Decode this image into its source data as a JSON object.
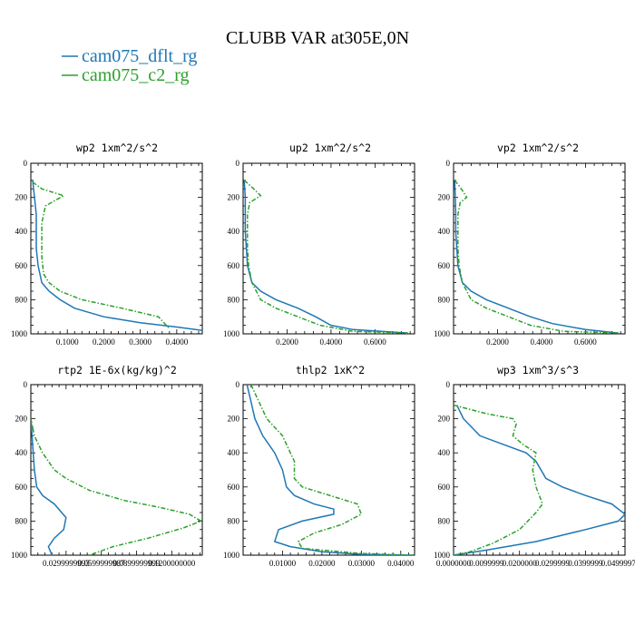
{
  "title": "CLUBB VAR at305E,0N",
  "legend": [
    {
      "label": "cam075_dflt_rg",
      "color": "#1f77b4"
    },
    {
      "label": "cam075_c2_rg",
      "color": "#2ca02c"
    }
  ],
  "chart_data": [
    {
      "type": "line",
      "title": "wp2  1xm^2/s^2",
      "ylim": [
        0,
        1000
      ],
      "yticks": [
        0,
        200,
        400,
        600,
        800,
        1000
      ],
      "xlim": [
        0,
        0.47
      ],
      "xticks": [
        0.1,
        0.2,
        0.3,
        0.4
      ],
      "xtick_labels": [
        "0.1000",
        "0.2000",
        "0.3000",
        "0.4000"
      ],
      "series": [
        {
          "name": "cam075_dflt_rg",
          "x": [
            0.005,
            0.01,
            0.015,
            0.015,
            0.015,
            0.02,
            0.03,
            0.05,
            0.08,
            0.12,
            0.2,
            0.3,
            0.4,
            0.47
          ],
          "y": [
            100,
            200,
            300,
            400,
            500,
            600,
            700,
            750,
            800,
            850,
            900,
            935,
            960,
            980
          ]
        },
        {
          "name": "cam075_c2_rg",
          "x": [
            0.005,
            0.03,
            0.09,
            0.04,
            0.03,
            0.03,
            0.03,
            0.035,
            0.05,
            0.08,
            0.14,
            0.25,
            0.35,
            0.38
          ],
          "y": [
            110,
            150,
            190,
            250,
            350,
            450,
            550,
            650,
            700,
            750,
            800,
            850,
            900,
            970
          ]
        }
      ]
    },
    {
      "type": "line",
      "title": "up2  1xm^2/s^2",
      "ylim": [
        0,
        1000
      ],
      "yticks": [
        0,
        200,
        400,
        600,
        800,
        1000
      ],
      "xlim": [
        0,
        0.78
      ],
      "xticks": [
        0.2,
        0.4,
        0.6
      ],
      "xtick_labels": [
        "0.2000",
        "0.4000",
        "0.6000"
      ],
      "series": [
        {
          "name": "cam075_dflt_rg",
          "x": [
            0.005,
            0.01,
            0.01,
            0.01,
            0.015,
            0.02,
            0.04,
            0.08,
            0.15,
            0.25,
            0.33,
            0.4,
            0.5,
            0.75
          ],
          "y": [
            100,
            200,
            300,
            400,
            500,
            600,
            700,
            750,
            800,
            850,
            900,
            950,
            975,
            995
          ]
        },
        {
          "name": "cam075_c2_rg",
          "x": [
            0.005,
            0.04,
            0.08,
            0.03,
            0.02,
            0.02,
            0.02,
            0.025,
            0.04,
            0.08,
            0.15,
            0.25,
            0.35,
            0.5,
            0.75
          ],
          "y": [
            100,
            140,
            190,
            230,
            300,
            400,
            500,
            600,
            700,
            800,
            850,
            900,
            950,
            985,
            995
          ]
        }
      ]
    },
    {
      "type": "line",
      "title": "vp2  1xm^2/s^2",
      "ylim": [
        0,
        1000
      ],
      "yticks": [
        0,
        200,
        400,
        600,
        800,
        1000
      ],
      "xlim": [
        0,
        0.78
      ],
      "xticks": [
        0.2,
        0.4,
        0.6
      ],
      "xtick_labels": [
        "0.2000",
        "0.4000",
        "0.6000"
      ],
      "series": [
        {
          "name": "cam075_dflt_rg",
          "x": [
            0.005,
            0.008,
            0.01,
            0.01,
            0.015,
            0.02,
            0.04,
            0.08,
            0.15,
            0.25,
            0.35,
            0.45,
            0.6,
            0.75
          ],
          "y": [
            100,
            200,
            300,
            400,
            500,
            600,
            700,
            750,
            800,
            850,
            900,
            940,
            975,
            995
          ]
        },
        {
          "name": "cam075_c2_rg",
          "x": [
            0.005,
            0.03,
            0.06,
            0.03,
            0.02,
            0.02,
            0.02,
            0.025,
            0.04,
            0.08,
            0.15,
            0.25,
            0.35,
            0.5,
            0.75
          ],
          "y": [
            100,
            140,
            200,
            230,
            300,
            400,
            500,
            600,
            700,
            800,
            850,
            900,
            950,
            985,
            995
          ]
        }
      ]
    },
    {
      "type": "line",
      "title": "rtp2  1E-6x(kg/kg)^2",
      "ylim": [
        0,
        1000
      ],
      "yticks": [
        0,
        200,
        400,
        600,
        800,
        1000
      ],
      "xlim": [
        0,
        0.146
      ],
      "xticks": [
        0.03,
        0.06,
        0.09,
        0.12
      ],
      "xtick_labels": [
        "0.0299999993",
        "0.0599999987",
        "0.0899999999",
        "0.1200000000"
      ],
      "series": [
        {
          "name": "cam075_dflt_rg",
          "x": [
            0.0,
            0.001,
            0.002,
            0.003,
            0.005,
            0.01,
            0.02,
            0.03,
            0.028,
            0.02,
            0.015,
            0.018
          ],
          "y": [
            200,
            300,
            400,
            500,
            600,
            650,
            700,
            780,
            850,
            900,
            950,
            1000
          ]
        },
        {
          "name": "cam075_c2_rg",
          "x": [
            0.0,
            0.003,
            0.01,
            0.02,
            0.03,
            0.05,
            0.08,
            0.11,
            0.135,
            0.145,
            0.13,
            0.1,
            0.07,
            0.05
          ],
          "y": [
            200,
            300,
            400,
            500,
            550,
            620,
            680,
            720,
            760,
            800,
            840,
            900,
            950,
            1000
          ]
        }
      ]
    },
    {
      "type": "line",
      "title": "thlp2  1xK^2",
      "ylim": [
        0,
        1000
      ],
      "yticks": [
        0,
        200,
        400,
        600,
        800,
        1000
      ],
      "xlim": [
        0,
        0.0435
      ],
      "xticks": [
        0.01,
        0.02,
        0.03,
        0.04
      ],
      "xtick_labels": [
        "0.01000",
        "0.02000",
        "0.03000",
        "0.04000"
      ],
      "series": [
        {
          "name": "cam075_dflt_rg",
          "x": [
            0.001,
            0.002,
            0.003,
            0.005,
            0.008,
            0.01,
            0.011,
            0.013,
            0.018,
            0.023,
            0.023,
            0.015,
            0.009,
            0.008,
            0.012,
            0.02,
            0.03,
            0.043
          ],
          "y": [
            0,
            100,
            200,
            300,
            400,
            500,
            600,
            650,
            700,
            730,
            760,
            800,
            850,
            920,
            950,
            980,
            995,
            1000
          ]
        },
        {
          "name": "cam075_c2_rg",
          "x": [
            0.002,
            0.004,
            0.006,
            0.008,
            0.01,
            0.012,
            0.013,
            0.013,
            0.015,
            0.022,
            0.029,
            0.03,
            0.025,
            0.018,
            0.014,
            0.015,
            0.03,
            0.043
          ],
          "y": [
            0,
            100,
            200,
            250,
            300,
            400,
            450,
            550,
            600,
            650,
            700,
            760,
            820,
            870,
            920,
            960,
            990,
            1000
          ]
        }
      ]
    },
    {
      "type": "line",
      "title": "wp3  1xm^3/s^3",
      "ylim": [
        0,
        1000
      ],
      "yticks": [
        0,
        200,
        400,
        600,
        800,
        1000
      ],
      "xlim": [
        0,
        0.052
      ],
      "xticks": [
        0,
        0.01,
        0.02,
        0.03,
        0.04,
        0.05
      ],
      "xtick_labels": [
        "0.0000000",
        "0.0099999",
        "0.0200000",
        "0.0299999",
        "0.0399999",
        "0.0499997"
      ],
      "series": [
        {
          "name": "cam075_dflt_rg",
          "x": [
            0.001,
            0.003,
            0.008,
            0.015,
            0.022,
            0.025,
            0.028,
            0.033,
            0.04,
            0.048,
            0.052,
            0.05,
            0.04,
            0.025,
            0.01,
            0.0
          ],
          "y": [
            120,
            200,
            300,
            350,
            400,
            450,
            550,
            600,
            650,
            700,
            760,
            800,
            850,
            920,
            970,
            1000
          ]
        },
        {
          "name": "cam075_c2_rg",
          "x": [
            0.0,
            0.01,
            0.018,
            0.019,
            0.018,
            0.021,
            0.025,
            0.024,
            0.025,
            0.027,
            0.025,
            0.02,
            0.012,
            0.005,
            0.0
          ],
          "y": [
            120,
            170,
            200,
            230,
            300,
            350,
            400,
            500,
            600,
            700,
            750,
            850,
            930,
            980,
            1000
          ]
        }
      ]
    }
  ]
}
